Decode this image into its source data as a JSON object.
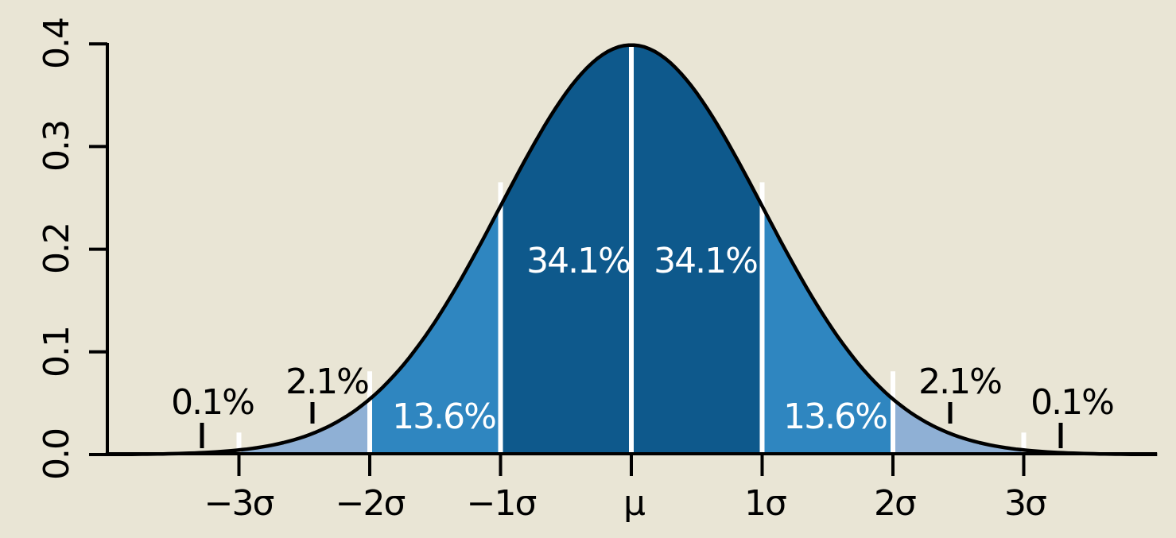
{
  "chart_data": {
    "type": "area",
    "curve": {
      "distribution": "normal-pdf",
      "mean_label": "μ",
      "peak_density": 0.3989
    },
    "x_axis": {
      "tick_labels": [
        "−3σ",
        "−2σ",
        "−1σ",
        "μ",
        "1σ",
        "2σ",
        "3σ"
      ],
      "ticks_sigma": [
        -3,
        -2,
        -1,
        0,
        1,
        2,
        3
      ],
      "range_sigma": [
        -4,
        4
      ]
    },
    "y_axis": {
      "tick_labels": [
        "0.0",
        "0.1",
        "0.2",
        "0.3",
        "0.4"
      ],
      "tick_values": [
        0.0,
        0.1,
        0.2,
        0.3,
        0.4
      ],
      "range": [
        0.0,
        0.4
      ]
    },
    "regions": [
      {
        "z_from": -4,
        "z_to": -3,
        "percent": 0.1,
        "label": "0.1%",
        "fill": "#8fb0d5"
      },
      {
        "z_from": -3,
        "z_to": -2,
        "percent": 2.1,
        "label": "2.1%",
        "fill": "#8fb0d5"
      },
      {
        "z_from": -2,
        "z_to": -1,
        "percent": 13.6,
        "label": "13.6%",
        "fill": "#2f86c0"
      },
      {
        "z_from": -1,
        "z_to": 0,
        "percent": 34.1,
        "label": "34.1%",
        "fill": "#0e598c"
      },
      {
        "z_from": 0,
        "z_to": 1,
        "percent": 34.1,
        "label": "34.1%",
        "fill": "#0e598c"
      },
      {
        "z_from": 1,
        "z_to": 2,
        "percent": 13.6,
        "label": "13.6%",
        "fill": "#2f86c0"
      },
      {
        "z_from": 2,
        "z_to": 3,
        "percent": 2.1,
        "label": "2.1%",
        "fill": "#8fb0d5"
      },
      {
        "z_from": 3,
        "z_to": 4,
        "percent": 0.1,
        "label": "0.1%",
        "fill": "#8fb0d5"
      }
    ],
    "dividers_at_sigma": [
      -3,
      -2,
      -1,
      0,
      1,
      2,
      3
    ],
    "legend": "none",
    "grid": "off",
    "colors": {
      "background": "#e9e5d5",
      "curve": "#000000",
      "axis": "#000000",
      "divider": "#ffffff",
      "band_dark": "#0e598c",
      "band_medium": "#2f86c0",
      "band_light": "#8fb0d5"
    }
  }
}
